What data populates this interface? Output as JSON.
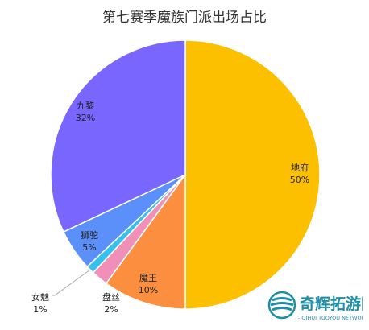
{
  "chart_data": {
    "type": "pie",
    "title": "第七赛季魔族门派出场占比",
    "slices": [
      {
        "name": "地府",
        "value": 50,
        "label": "50%",
        "color": "#FCC000"
      },
      {
        "name": "魔王",
        "value": 10,
        "label": "10%",
        "color": "#FB8F3F"
      },
      {
        "name": "盘丝",
        "value": 2,
        "label": "2%",
        "color": "#F090B8"
      },
      {
        "name": "女魅",
        "value": 1,
        "label": "1%",
        "color": "#36C0F0"
      },
      {
        "name": "狮驼",
        "value": 5,
        "label": "5%",
        "color": "#5B8FF9"
      },
      {
        "name": "九黎",
        "value": 32,
        "label": "32%",
        "color": "#7966FF"
      }
    ],
    "start_angle": "12 o'clock",
    "direction": "clockwise",
    "legend": "none"
  },
  "watermark": {
    "text": "奇辉拓游网",
    "subtext": "- QIHUI TUOYOU NETWORK -",
    "color": "#1E8FA8"
  }
}
